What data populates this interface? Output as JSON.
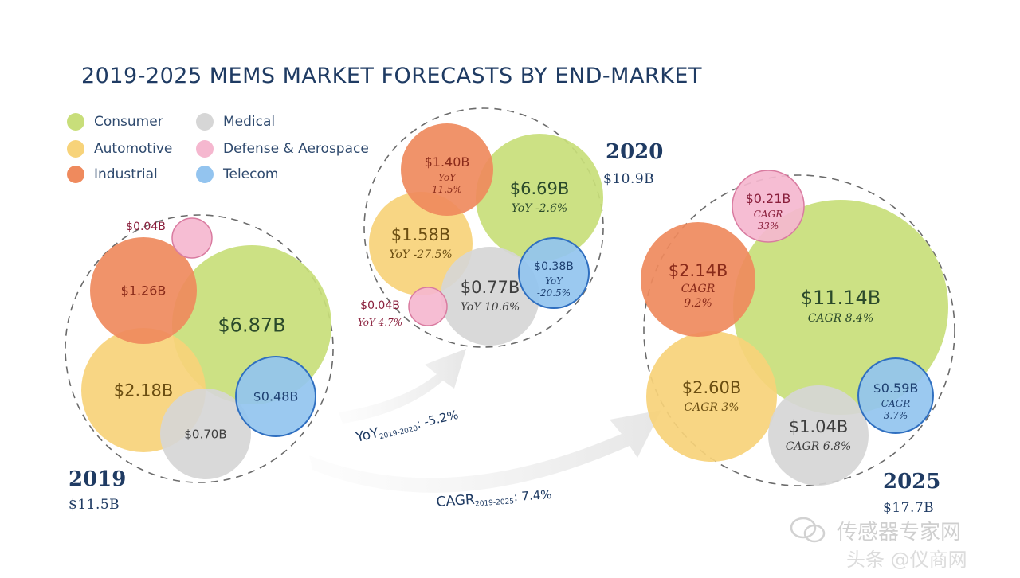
{
  "title": "2019-2025 MEMS MARKET FORECASTS BY END-MARKET",
  "legend": [
    {
      "label": "Consumer",
      "color": "#c8de7a"
    },
    {
      "label": "Automotive",
      "color": "#f7d37a"
    },
    {
      "label": "Industrial",
      "color": "#ef8a5d"
    },
    {
      "label": "Medical",
      "color": "#d6d6d6"
    },
    {
      "label": "Defense & Aerospace",
      "color": "#f5b7cf"
    },
    {
      "label": "Telecom",
      "color": "#93c4ef"
    }
  ],
  "arrows": {
    "yoy": "YoY",
    "yoy_sub": "2019-2020",
    "yoy_value": ": -5.2%",
    "cagr": "CAGR",
    "cagr_sub": "2019-2025",
    "cagr_value": ": 7.4%"
  },
  "watermark": {
    "line1": "传感器专家网",
    "line2": "头条 @仪商网"
  },
  "chart_data": {
    "type": "bubble",
    "title": "2019-2025 MEMS MARKET FORECASTS BY END-MARKET",
    "unit": "$B",
    "groups": [
      {
        "year": "2019",
        "total_label": "$11.5B",
        "total": 11.5,
        "items": [
          {
            "segment": "Consumer",
            "value": 6.87,
            "label": "$6.87B",
            "note": ""
          },
          {
            "segment": "Automotive",
            "value": 2.18,
            "label": "$2.18B",
            "note": ""
          },
          {
            "segment": "Industrial",
            "value": 1.26,
            "label": "$1.26B",
            "note": ""
          },
          {
            "segment": "Medical",
            "value": 0.7,
            "label": "$0.70B",
            "note": ""
          },
          {
            "segment": "Telecom",
            "value": 0.48,
            "label": "$0.48B",
            "note": ""
          },
          {
            "segment": "Defense & Aerospace",
            "value": 0.04,
            "label": "$0.04B",
            "note": ""
          }
        ]
      },
      {
        "year": "2020",
        "total_label": "$10.9B",
        "total": 10.9,
        "items": [
          {
            "segment": "Consumer",
            "value": 6.69,
            "label": "$6.69B",
            "note": "YoY -2.6%"
          },
          {
            "segment": "Automotive",
            "value": 1.58,
            "label": "$1.58B",
            "note": "YoY -27.5%"
          },
          {
            "segment": "Industrial",
            "value": 1.4,
            "label": "$1.40B",
            "note": "YoY 11.5%"
          },
          {
            "segment": "Medical",
            "value": 0.77,
            "label": "$0.77B",
            "note": "YoY 10.6%"
          },
          {
            "segment": "Telecom",
            "value": 0.38,
            "label": "$0.38B",
            "note": "YoY -20.5%"
          },
          {
            "segment": "Defense & Aerospace",
            "value": 0.04,
            "label": "$0.04B",
            "note": "YoY 4.7%"
          }
        ]
      },
      {
        "year": "2025",
        "total_label": "$17.7B",
        "total": 17.7,
        "items": [
          {
            "segment": "Consumer",
            "value": 11.14,
            "label": "$11.14B",
            "note": "CAGR 8.4%"
          },
          {
            "segment": "Automotive",
            "value": 2.6,
            "label": "$2.60B",
            "note": "CAGR 3%"
          },
          {
            "segment": "Industrial",
            "value": 2.14,
            "label": "$2.14B",
            "note": "CAGR 9.2%"
          },
          {
            "segment": "Medical",
            "value": 1.04,
            "label": "$1.04B",
            "note": "CAGR 6.8%"
          },
          {
            "segment": "Telecom",
            "value": 0.59,
            "label": "$0.59B",
            "note": "CAGR 3.7%"
          },
          {
            "segment": "Defense & Aerospace",
            "value": 0.21,
            "label": "$0.21B",
            "note": "CAGR 33%"
          }
        ]
      }
    ],
    "growth": [
      {
        "metric": "YoY",
        "period": "2019-2020",
        "value": -5.2
      },
      {
        "metric": "CAGR",
        "period": "2019-2025",
        "value": 7.4
      }
    ]
  }
}
